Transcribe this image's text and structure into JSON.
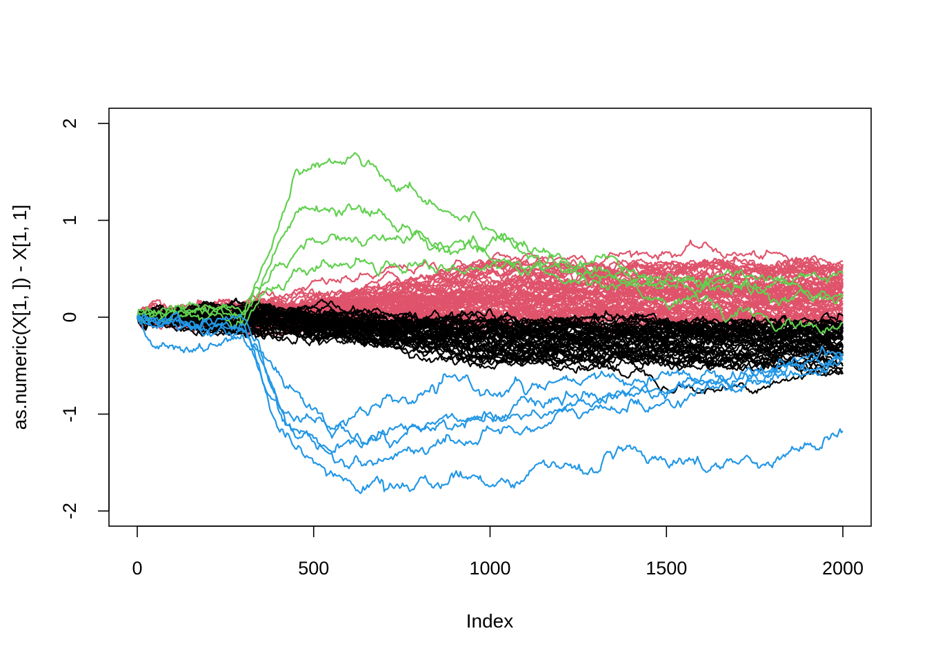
{
  "chart_data": {
    "type": "line",
    "title": "",
    "xlabel": "Index",
    "ylabel": "as.numeric(X[1, ]) - X[1, 1]",
    "xlim": [
      0,
      2000
    ],
    "ylim": [
      -2.15,
      2.15
    ],
    "x_ticks": [
      "0",
      "500",
      "1000",
      "1500",
      "2000"
    ],
    "y_ticks": [
      "-2",
      "-1",
      "0",
      "1",
      "2"
    ],
    "grid": false,
    "legend": "none",
    "n_points": 2000,
    "colors": {
      "black": "#000000",
      "red": "#DF536B",
      "green": "#61D04F",
      "blue": "#2297E6"
    },
    "series_groups": [
      {
        "color_key": "red",
        "count": 60,
        "divergence_index": 330,
        "end_range": [
          -0.05,
          0.55
        ],
        "noise_sd": 0.018,
        "described_paths": [
          {
            "index": [
              0,
              330,
              900,
              1300,
              1600,
              2000
            ],
            "value": [
              0,
              0.2,
              0.55,
              0.65,
              0.7,
              0.5
            ]
          },
          {
            "index": [
              0,
              330,
              1000,
              1500,
              2000
            ],
            "value": [
              0,
              0.1,
              0.3,
              0.35,
              0.3
            ]
          },
          {
            "index": [
              0,
              330,
              1000,
              1500,
              2000
            ],
            "value": [
              0,
              0.05,
              0.15,
              0.1,
              0.05
            ]
          }
        ]
      },
      {
        "color_key": "black",
        "count": 45,
        "divergence_index": 330,
        "end_range": [
          -0.55,
          -0.05
        ],
        "noise_sd": 0.018,
        "described_paths": [
          {
            "index": [
              0,
              330,
              900,
              1450,
              1650,
              2000
            ],
            "value": [
              0,
              -0.1,
              -0.45,
              -0.55,
              -0.75,
              -0.55
            ]
          },
          {
            "index": [
              0,
              330,
              1000,
              1500,
              2000
            ],
            "value": [
              0,
              -0.1,
              -0.3,
              -0.3,
              -0.25
            ]
          },
          {
            "index": [
              0,
              330,
              1000,
              1500,
              2000
            ],
            "value": [
              0,
              0,
              -0.1,
              -0.15,
              -0.1
            ]
          }
        ]
      },
      {
        "color_key": "green",
        "count": 4,
        "paths": [
          {
            "index": [
              0,
              300,
              350,
              450,
              600,
              630,
              750,
              900,
              1100,
              1300,
              1500,
              1700,
              1850,
              2000
            ],
            "value": [
              0,
              0.1,
              0.5,
              1.5,
              1.65,
              1.68,
              1.4,
              1.1,
              0.75,
              0.45,
              0.25,
              0.0,
              -0.1,
              -0.15
            ]
          },
          {
            "index": [
              0,
              300,
              350,
              450,
              600,
              800,
              1000,
              1200,
              1400,
              1600,
              1800,
              2000
            ],
            "value": [
              0,
              0.1,
              0.35,
              1.05,
              1.05,
              0.85,
              0.8,
              0.6,
              0.4,
              0.3,
              0.25,
              0.2
            ]
          },
          {
            "index": [
              0,
              300,
              350,
              450,
              600,
              800,
              1000,
              1200,
              1400,
              1600,
              1800,
              2000
            ],
            "value": [
              0,
              0.1,
              0.3,
              0.75,
              0.8,
              0.75,
              0.65,
              0.5,
              0.4,
              0.35,
              0.45,
              0.4
            ]
          },
          {
            "index": [
              0,
              300,
              350,
              500,
              700,
              900,
              1100,
              1300,
              1500,
              1700,
              2000
            ],
            "value": [
              0,
              0.05,
              0.25,
              0.5,
              0.6,
              0.55,
              0.45,
              0.35,
              0.3,
              0.3,
              0.3
            ]
          }
        ]
      },
      {
        "color_key": "blue",
        "count": 5,
        "paths": [
          {
            "index": [
              0,
              50,
              150,
              300,
              350,
              400,
              500,
              600,
              800,
              1000,
              1200,
              1400,
              1600,
              1800,
              1900,
              2000
            ],
            "value": [
              0,
              -0.3,
              -0.3,
              -0.25,
              -0.6,
              -1.2,
              -1.6,
              -1.75,
              -1.7,
              -1.65,
              -1.55,
              -1.45,
              -1.5,
              -1.45,
              -1.35,
              -1.15
            ]
          },
          {
            "index": [
              0,
              300,
              350,
              420,
              600,
              800,
              1000,
              1200,
              1500,
              1800,
              2000
            ],
            "value": [
              0,
              -0.15,
              -0.5,
              -1.1,
              -1.5,
              -1.35,
              -1.2,
              -1.05,
              -0.85,
              -0.6,
              -0.45
            ]
          },
          {
            "index": [
              0,
              300,
              350,
              420,
              620,
              800,
              1000,
              1200,
              1500,
              1800,
              2000
            ],
            "value": [
              0,
              -0.1,
              -0.3,
              -0.8,
              -1.3,
              -1.1,
              -1.0,
              -0.9,
              -0.75,
              -0.55,
              -0.4
            ]
          },
          {
            "index": [
              0,
              300,
              360,
              500,
              700,
              900,
              1100,
              1300,
              1500,
              1800,
              2000
            ],
            "value": [
              0,
              -0.1,
              -0.7,
              -1.1,
              -0.95,
              -0.75,
              -0.75,
              -0.7,
              -0.6,
              -0.5,
              -0.35
            ]
          },
          {
            "index": [
              0,
              300,
              350,
              450,
              550,
              700,
              900,
              1100,
              1300,
              1500,
              1800,
              2000
            ],
            "value": [
              0,
              -0.15,
              -0.4,
              -1.2,
              -1.35,
              -1.2,
              -1.05,
              -0.95,
              -0.9,
              -0.8,
              -0.65,
              -0.5
            ]
          }
        ]
      }
    ]
  }
}
